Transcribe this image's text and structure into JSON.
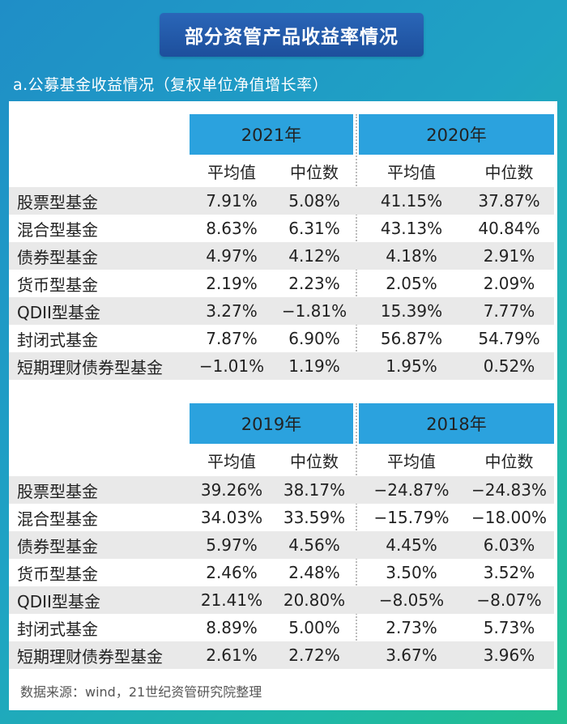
{
  "title": "部分资管产品收益率情况",
  "subtitle": "a.公募基金收益情况（复权单位净值增长率）",
  "col_labels": {
    "avg": "平均值",
    "median": "中位数"
  },
  "tables": [
    {
      "year_left": "2021年",
      "year_right": "2020年",
      "rows": [
        {
          "name": "股票型基金",
          "v": [
            "7.91%",
            "5.08%",
            "41.15%",
            "37.87%"
          ]
        },
        {
          "name": "混合型基金",
          "v": [
            "8.63%",
            "6.31%",
            "43.13%",
            "40.84%"
          ]
        },
        {
          "name": "债券型基金",
          "v": [
            "4.97%",
            "4.12%",
            "4.18%",
            "2.91%"
          ]
        },
        {
          "name": "货币型基金",
          "v": [
            "2.19%",
            "2.23%",
            "2.05%",
            "2.09%"
          ]
        },
        {
          "name": "QDII型基金",
          "v": [
            "3.27%",
            "−1.81%",
            "15.39%",
            "7.77%"
          ]
        },
        {
          "name": "封闭式基金",
          "v": [
            "7.87%",
            "6.90%",
            "56.87%",
            "54.79%"
          ]
        },
        {
          "name": "短期理财债券型基金",
          "v": [
            "−1.01%",
            "1.19%",
            "1.95%",
            "0.52%"
          ]
        }
      ]
    },
    {
      "year_left": "2019年",
      "year_right": "2018年",
      "rows": [
        {
          "name": "股票型基金",
          "v": [
            "39.26%",
            "38.17%",
            "−24.87%",
            "−24.83%"
          ]
        },
        {
          "name": "混合型基金",
          "v": [
            "34.03%",
            "33.59%",
            "−15.79%",
            "−18.00%"
          ]
        },
        {
          "name": "债券型基金",
          "v": [
            "5.97%",
            "4.56%",
            "4.45%",
            "6.03%"
          ]
        },
        {
          "name": "货币型基金",
          "v": [
            "2.46%",
            "2.48%",
            "3.50%",
            "3.52%"
          ]
        },
        {
          "name": "QDII型基金",
          "v": [
            "21.41%",
            "20.80%",
            "−8.05%",
            "−8.07%"
          ]
        },
        {
          "name": "封闭式基金",
          "v": [
            "8.89%",
            "5.00%",
            "2.73%",
            "5.73%"
          ]
        },
        {
          "name": "短期理财债券型基金",
          "v": [
            "2.61%",
            "2.72%",
            "3.67%",
            "3.96%"
          ]
        }
      ]
    }
  ],
  "source": "数据来源：wind，21世纪资管研究院整理",
  "colors": {
    "header_blue": "#2ba2de",
    "banner": "#1d4f9c",
    "row_shade": "#e9e9e9"
  }
}
